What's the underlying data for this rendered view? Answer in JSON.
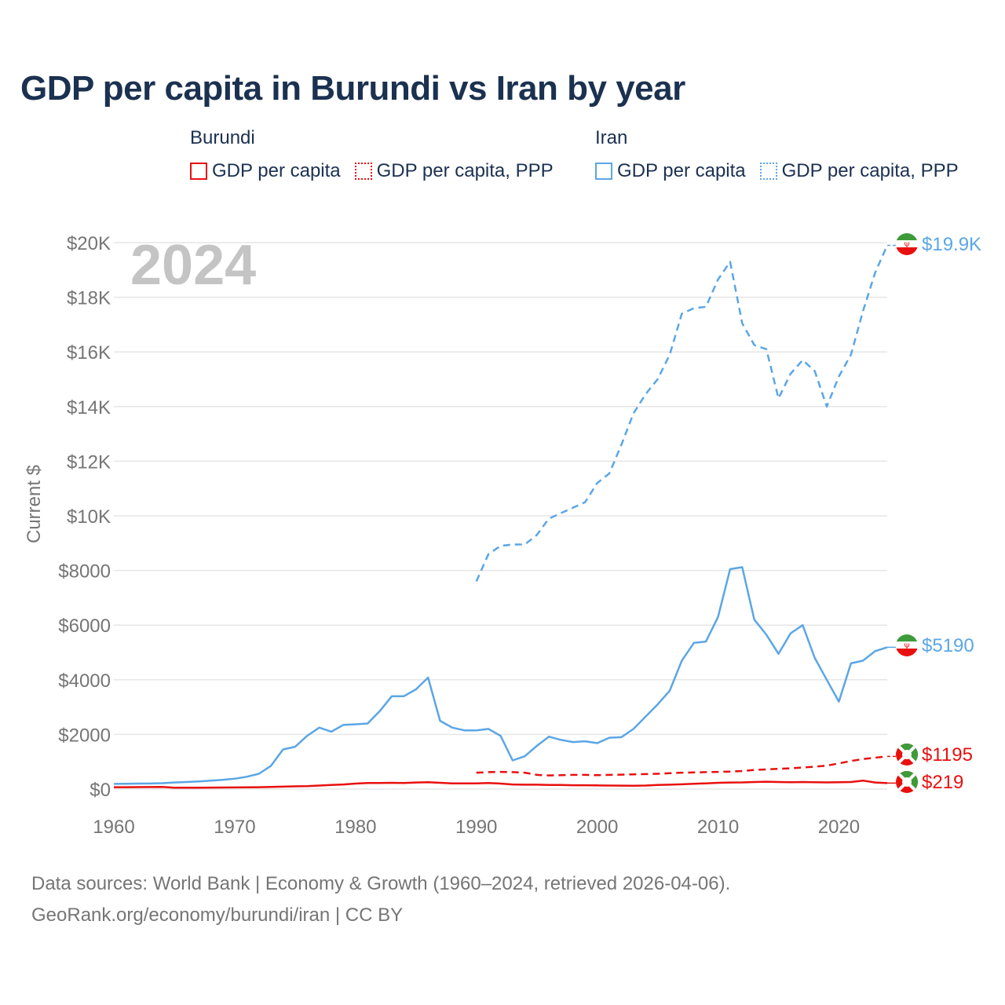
{
  "title": "GDP per capita in Burundi vs Iran by year",
  "legend": [
    {
      "country": "Burundi",
      "color": "#e8100f",
      "items": [
        "GDP per capita",
        "GDP per capita, PPP"
      ]
    },
    {
      "country": "Iran",
      "color": "#5ba6e5",
      "items": [
        "GDP per capita",
        "GDP per capita, PPP"
      ]
    }
  ],
  "year_watermark": "2024",
  "end_labels": {
    "iran_ppp": "$19.9K",
    "iran_gdp": "$5190",
    "burundi_ppp": "$1195",
    "burundi_gdp": "$219"
  },
  "footer": {
    "line1": "Data sources: World Bank | Economy & Growth (1960–2024, retrieved 2026-04-06).",
    "line2": "GeoRank.org/economy/burundi/iran | CC BY"
  },
  "chart_data": {
    "type": "line",
    "title": "GDP per capita in Burundi vs Iran by year",
    "xlabel": "",
    "ylabel": "Current $",
    "xlim": [
      1960,
      2024
    ],
    "ylim": [
      0,
      20000
    ],
    "x_ticks": [
      1960,
      1970,
      1980,
      1990,
      2000,
      2010,
      2020
    ],
    "y_ticks": [
      0,
      2000,
      4000,
      6000,
      8000,
      10000,
      12000,
      14000,
      16000,
      18000,
      20000
    ],
    "y_tick_labels": [
      "$0",
      "$2000",
      "$4000",
      "$6000",
      "$8000",
      "$10K",
      "$12K",
      "$14K",
      "$16K",
      "$18K",
      "$20K"
    ],
    "x_tick_labels": [
      "1960",
      "1970",
      "1980",
      "1990",
      "2000",
      "2010",
      "2020"
    ],
    "series": [
      {
        "name": "Iran GDP per capita",
        "color": "#5ba6e5",
        "dash": "solid",
        "x": [
          1960,
          1961,
          1962,
          1963,
          1964,
          1965,
          1966,
          1967,
          1968,
          1969,
          1970,
          1971,
          1972,
          1973,
          1974,
          1975,
          1976,
          1977,
          1978,
          1979,
          1980,
          1981,
          1982,
          1983,
          1984,
          1985,
          1986,
          1987,
          1988,
          1989,
          1990,
          1991,
          1992,
          1993,
          1994,
          1995,
          1996,
          1997,
          1998,
          1999,
          2000,
          2001,
          2002,
          2003,
          2004,
          2005,
          2006,
          2007,
          2008,
          2009,
          2010,
          2011,
          2012,
          2013,
          2014,
          2015,
          2016,
          2017,
          2018,
          2019,
          2020,
          2021,
          2022,
          2023,
          2024
        ],
        "y": [
          190,
          195,
          200,
          205,
          215,
          240,
          260,
          280,
          310,
          340,
          380,
          450,
          560,
          850,
          1450,
          1550,
          1950,
          2250,
          2100,
          2350,
          2370,
          2400,
          2850,
          3400,
          3400,
          3650,
          4080,
          2500,
          2250,
          2150,
          2150,
          2200,
          1950,
          1050,
          1200,
          1580,
          1920,
          1800,
          1720,
          1750,
          1680,
          1880,
          1900,
          2200,
          2650,
          3100,
          3600,
          4700,
          5350,
          5400,
          6300,
          8050,
          8120,
          6200,
          5650,
          4950,
          5700,
          6000,
          4800,
          4000,
          3200,
          4600,
          4700,
          5050,
          5190
        ]
      },
      {
        "name": "Iran GDP per capita, PPP",
        "color": "#5ba6e5",
        "dash": "dashed",
        "x": [
          1990,
          1991,
          1992,
          1993,
          1994,
          1995,
          1996,
          1997,
          1998,
          1999,
          2000,
          2001,
          2002,
          2003,
          2004,
          2005,
          2006,
          2007,
          2008,
          2009,
          2010,
          2011,
          2012,
          2013,
          2014,
          2015,
          2016,
          2017,
          2018,
          2019,
          2020,
          2021,
          2022,
          2023,
          2024
        ],
        "y": [
          7600,
          8600,
          8900,
          8950,
          8950,
          9300,
          9900,
          10100,
          10300,
          10500,
          11200,
          11550,
          12600,
          13750,
          14450,
          15000,
          15900,
          17400,
          17600,
          17650,
          18650,
          19300,
          17050,
          16250,
          16100,
          14300,
          15200,
          15700,
          15300,
          14000,
          15100,
          15900,
          17500,
          18900,
          19900
        ]
      },
      {
        "name": "Burundi GDP per capita",
        "color": "#e8100f",
        "dash": "solid",
        "x": [
          1960,
          1961,
          1962,
          1963,
          1964,
          1965,
          1966,
          1967,
          1968,
          1969,
          1970,
          1971,
          1972,
          1973,
          1974,
          1975,
          1976,
          1977,
          1978,
          1979,
          1980,
          1981,
          1982,
          1983,
          1984,
          1985,
          1986,
          1987,
          1988,
          1989,
          1990,
          1991,
          1992,
          1993,
          1994,
          1995,
          1996,
          1997,
          1998,
          1999,
          2000,
          2001,
          2002,
          2003,
          2004,
          2005,
          2006,
          2007,
          2008,
          2009,
          2010,
          2011,
          2012,
          2013,
          2014,
          2015,
          2016,
          2017,
          2018,
          2019,
          2020,
          2021,
          2022,
          2023,
          2024
        ],
        "y": [
          70,
          70,
          72,
          75,
          78,
          50,
          50,
          52,
          55,
          58,
          60,
          65,
          70,
          80,
          90,
          100,
          110,
          130,
          150,
          170,
          200,
          220,
          220,
          230,
          220,
          240,
          250,
          230,
          210,
          210,
          210,
          220,
          200,
          170,
          160,
          160,
          150,
          150,
          140,
          140,
          135,
          130,
          125,
          120,
          130,
          150,
          160,
          175,
          195,
          210,
          230,
          240,
          245,
          260,
          270,
          260,
          250,
          260,
          250,
          245,
          250,
          260,
          310,
          240,
          219
        ]
      },
      {
        "name": "Burundi GDP per capita, PPP",
        "color": "#e8100f",
        "dash": "dashed",
        "x": [
          1990,
          1991,
          1992,
          1993,
          1994,
          1995,
          1996,
          1997,
          1998,
          1999,
          2000,
          2001,
          2002,
          2003,
          2004,
          2005,
          2006,
          2007,
          2008,
          2009,
          2010,
          2011,
          2012,
          2013,
          2014,
          2015,
          2016,
          2017,
          2018,
          2019,
          2020,
          2021,
          2022,
          2023,
          2024
        ],
        "y": [
          600,
          620,
          630,
          620,
          600,
          520,
          500,
          510,
          520,
          520,
          510,
          520,
          530,
          540,
          550,
          560,
          580,
          600,
          610,
          620,
          630,
          640,
          660,
          700,
          720,
          740,
          760,
          790,
          820,
          860,
          940,
          1030,
          1100,
          1150,
          1195
        ]
      }
    ]
  }
}
